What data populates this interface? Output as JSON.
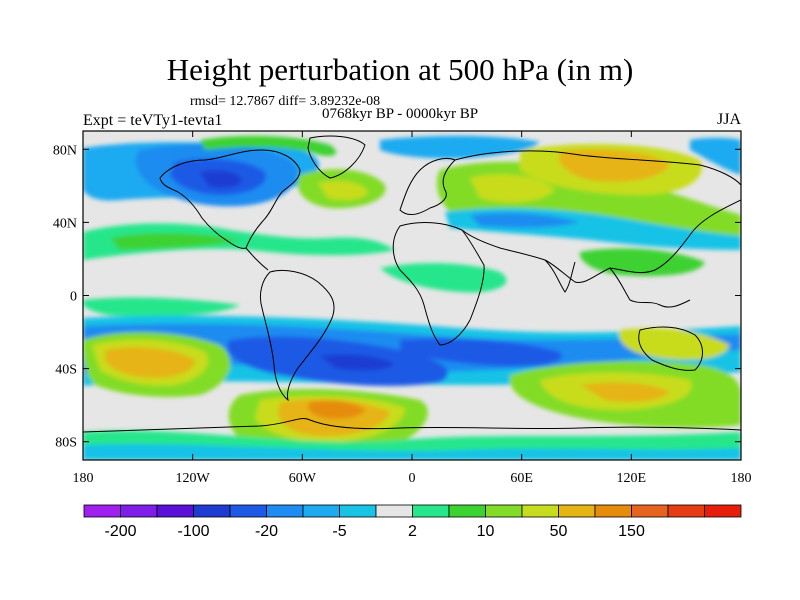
{
  "title": "Height perturbation at 500 hPa (in m)",
  "stats_text": "rmsd= 12.7867 diff= 3.89232e-08",
  "period_text": "0768kyr BP - 0000kyr BP",
  "experiment_text": "Expt = teVTy1-tevta1",
  "season_text": "JJA",
  "map": {
    "lat_range": [
      -90,
      90
    ],
    "lon_range": [
      -180,
      180
    ],
    "lat_ticks": [
      {
        "value": 80,
        "label": "80N"
      },
      {
        "value": 40,
        "label": "40N"
      },
      {
        "value": 0,
        "label": "0"
      },
      {
        "value": -40,
        "label": "40S"
      },
      {
        "value": -80,
        "label": "80S"
      }
    ],
    "lon_ticks": [
      {
        "value": -180,
        "label": "180"
      },
      {
        "value": -120,
        "label": "120W"
      },
      {
        "value": -60,
        "label": "60W"
      },
      {
        "value": 0,
        "label": "0"
      },
      {
        "value": 60,
        "label": "60E"
      },
      {
        "value": 120,
        "label": "120E"
      },
      {
        "value": 180,
        "label": "180"
      }
    ]
  },
  "colorbar": {
    "colors": [
      "#a020f0",
      "#7e1ee8",
      "#5a10d8",
      "#1e3cd2",
      "#1e5ae6",
      "#1e8cf0",
      "#1eaaf0",
      "#19c3e6",
      "#e6e6e6",
      "#28e68c",
      "#3cd232",
      "#82dc28",
      "#c8dc1e",
      "#e6b414",
      "#e68c0a",
      "#e6641e",
      "#e63c14",
      "#e61e0a"
    ],
    "labels": [
      {
        "after_box": 1,
        "text": "-200"
      },
      {
        "after_box": 3,
        "text": "-100"
      },
      {
        "after_box": 5,
        "text": "-20"
      },
      {
        "after_box": 7,
        "text": "-5"
      },
      {
        "after_box": 9,
        "text": "2"
      },
      {
        "after_box": 11,
        "text": "10"
      },
      {
        "after_box": 13,
        "text": "50"
      },
      {
        "after_box": 15,
        "text": "150"
      }
    ]
  }
}
